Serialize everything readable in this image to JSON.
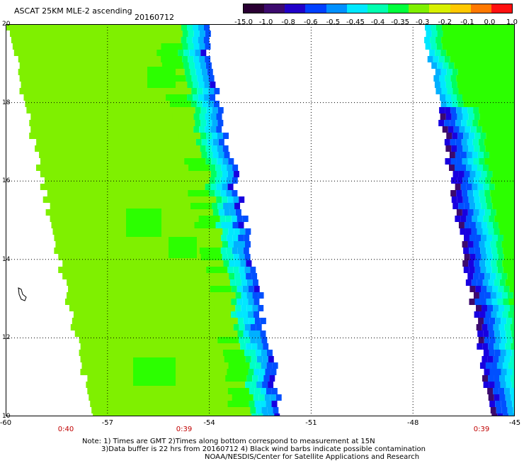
{
  "header": {
    "title": "ASCAT 25KM MLE-2 ascending",
    "date": "20160712"
  },
  "colorbar": {
    "colors": [
      "#2a0033",
      "#3c0a6e",
      "#2000c8",
      "#0040ff",
      "#0090ff",
      "#00e8ff",
      "#00ffb0",
      "#00ff3c",
      "#7ff000",
      "#d8f000",
      "#ffc800",
      "#ff7800",
      "#ff1010"
    ],
    "ticks": [
      "-15.0",
      "-1.0",
      "-0.8",
      "-0.6",
      "-0.5",
      "-0.45",
      "-0.4",
      "-0.35",
      "-0.3",
      "-0.2",
      "-0.1",
      "0.0",
      "1.0"
    ]
  },
  "map": {
    "lat_labels": [
      "20",
      "18",
      "16",
      "14",
      "12",
      "10"
    ],
    "lon_labels": [
      "-60",
      "-57",
      "-54",
      "-51",
      "-48",
      "-45"
    ],
    "time_labels": [
      "0:40",
      "0:39",
      "0:39"
    ],
    "colors": {
      "lime": "#7ff000",
      "green": "#2cff00",
      "light_green": "#00ff60",
      "aqua": "#00ffc8",
      "cyan": "#00e8ff",
      "sky": "#00b0ff",
      "blue": "#0050ff",
      "deep_blue": "#1800e0",
      "purple": "#3c0a6e",
      "grid": "#000000"
    }
  },
  "notes": {
    "line1": "Note: 1) Times are GMT 2)Times along bottom correspond to measurement at 15N",
    "line2": "3)Data buffer is 22 hrs from 20160712 4) Black wind barbs indicate possible contamination",
    "line3": "NOAA/NESDIS/Center for Satellite Applications and Research"
  }
}
